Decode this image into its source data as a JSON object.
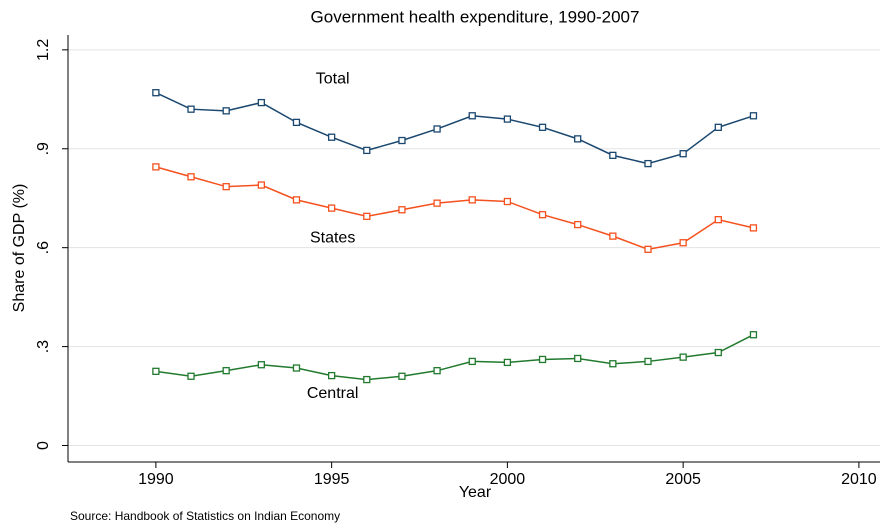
{
  "chart_data": {
    "type": "line",
    "title": "Government health expenditure, 1990-2007",
    "x_label": "Year",
    "y_label": "Share of GDP (%)",
    "note": "Source: Handbook of Statistics on Indian Economy",
    "x": [
      1990,
      1991,
      1992,
      1993,
      1994,
      1995,
      1996,
      1997,
      1998,
      1999,
      2000,
      2001,
      2002,
      2003,
      2004,
      2005,
      2006,
      2007
    ],
    "series": [
      {
        "name": "Total",
        "color": "#1a476f",
        "values": [
          1.07,
          1.02,
          1.015,
          1.04,
          0.98,
          0.935,
          0.895,
          0.925,
          0.96,
          1.0,
          0.99,
          0.965,
          0.93,
          0.88,
          0.855,
          0.885,
          0.965,
          1.0
        ]
      },
      {
        "name": "States",
        "color": "#f4511e",
        "values": [
          0.845,
          0.815,
          0.785,
          0.79,
          0.745,
          0.72,
          0.695,
          0.715,
          0.735,
          0.745,
          0.74,
          0.7,
          0.67,
          0.635,
          0.595,
          0.615,
          0.685,
          0.66
        ]
      },
      {
        "name": "Central",
        "color": "#217a2e",
        "values": [
          0.225,
          0.21,
          0.227,
          0.245,
          0.235,
          0.212,
          0.2,
          0.21,
          0.227,
          0.255,
          0.252,
          0.261,
          0.264,
          0.248,
          0.255,
          0.268,
          0.282,
          0.336
        ]
      }
    ],
    "xlim": [
      1987.5,
      2010.6
    ],
    "ylim": [
      -0.05,
      1.245
    ],
    "xticks": [
      1990,
      1995,
      2000,
      2005,
      2010
    ],
    "yticks": [
      0,
      {
        "value": 0.3,
        "label": ".3"
      },
      {
        "value": 0.6,
        "label": ".6"
      },
      {
        "value": 0.9,
        "label": ".9"
      },
      {
        "value": 1.2,
        "label": "1.2"
      }
    ],
    "grid": true
  }
}
